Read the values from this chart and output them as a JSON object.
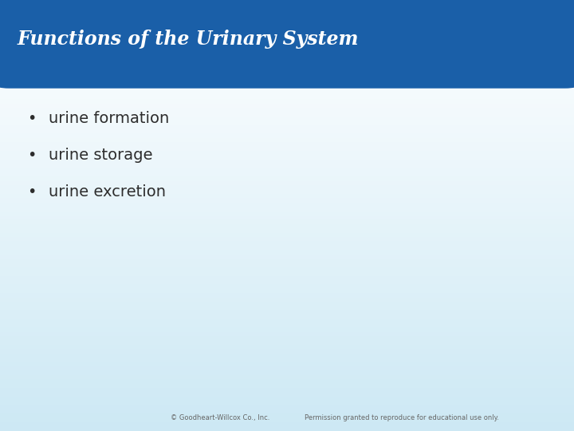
{
  "title": "Functions of the Urinary System",
  "title_color": "#ffffff",
  "title_bg_color": "#1a5fa8",
  "title_font_size": 17,
  "bullet_points": [
    "urine formation",
    "urine storage",
    "urine excretion"
  ],
  "bullet_color": "#2d2d2d",
  "bullet_font_size": 14,
  "background_top": "#ffffff",
  "background_bottom": "#cce8f4",
  "footer_left": "© Goodheart-Willcox Co., Inc.",
  "footer_right": "Permission granted to reproduce for educational use only.",
  "footer_color": "#666666",
  "footer_font_size": 6
}
